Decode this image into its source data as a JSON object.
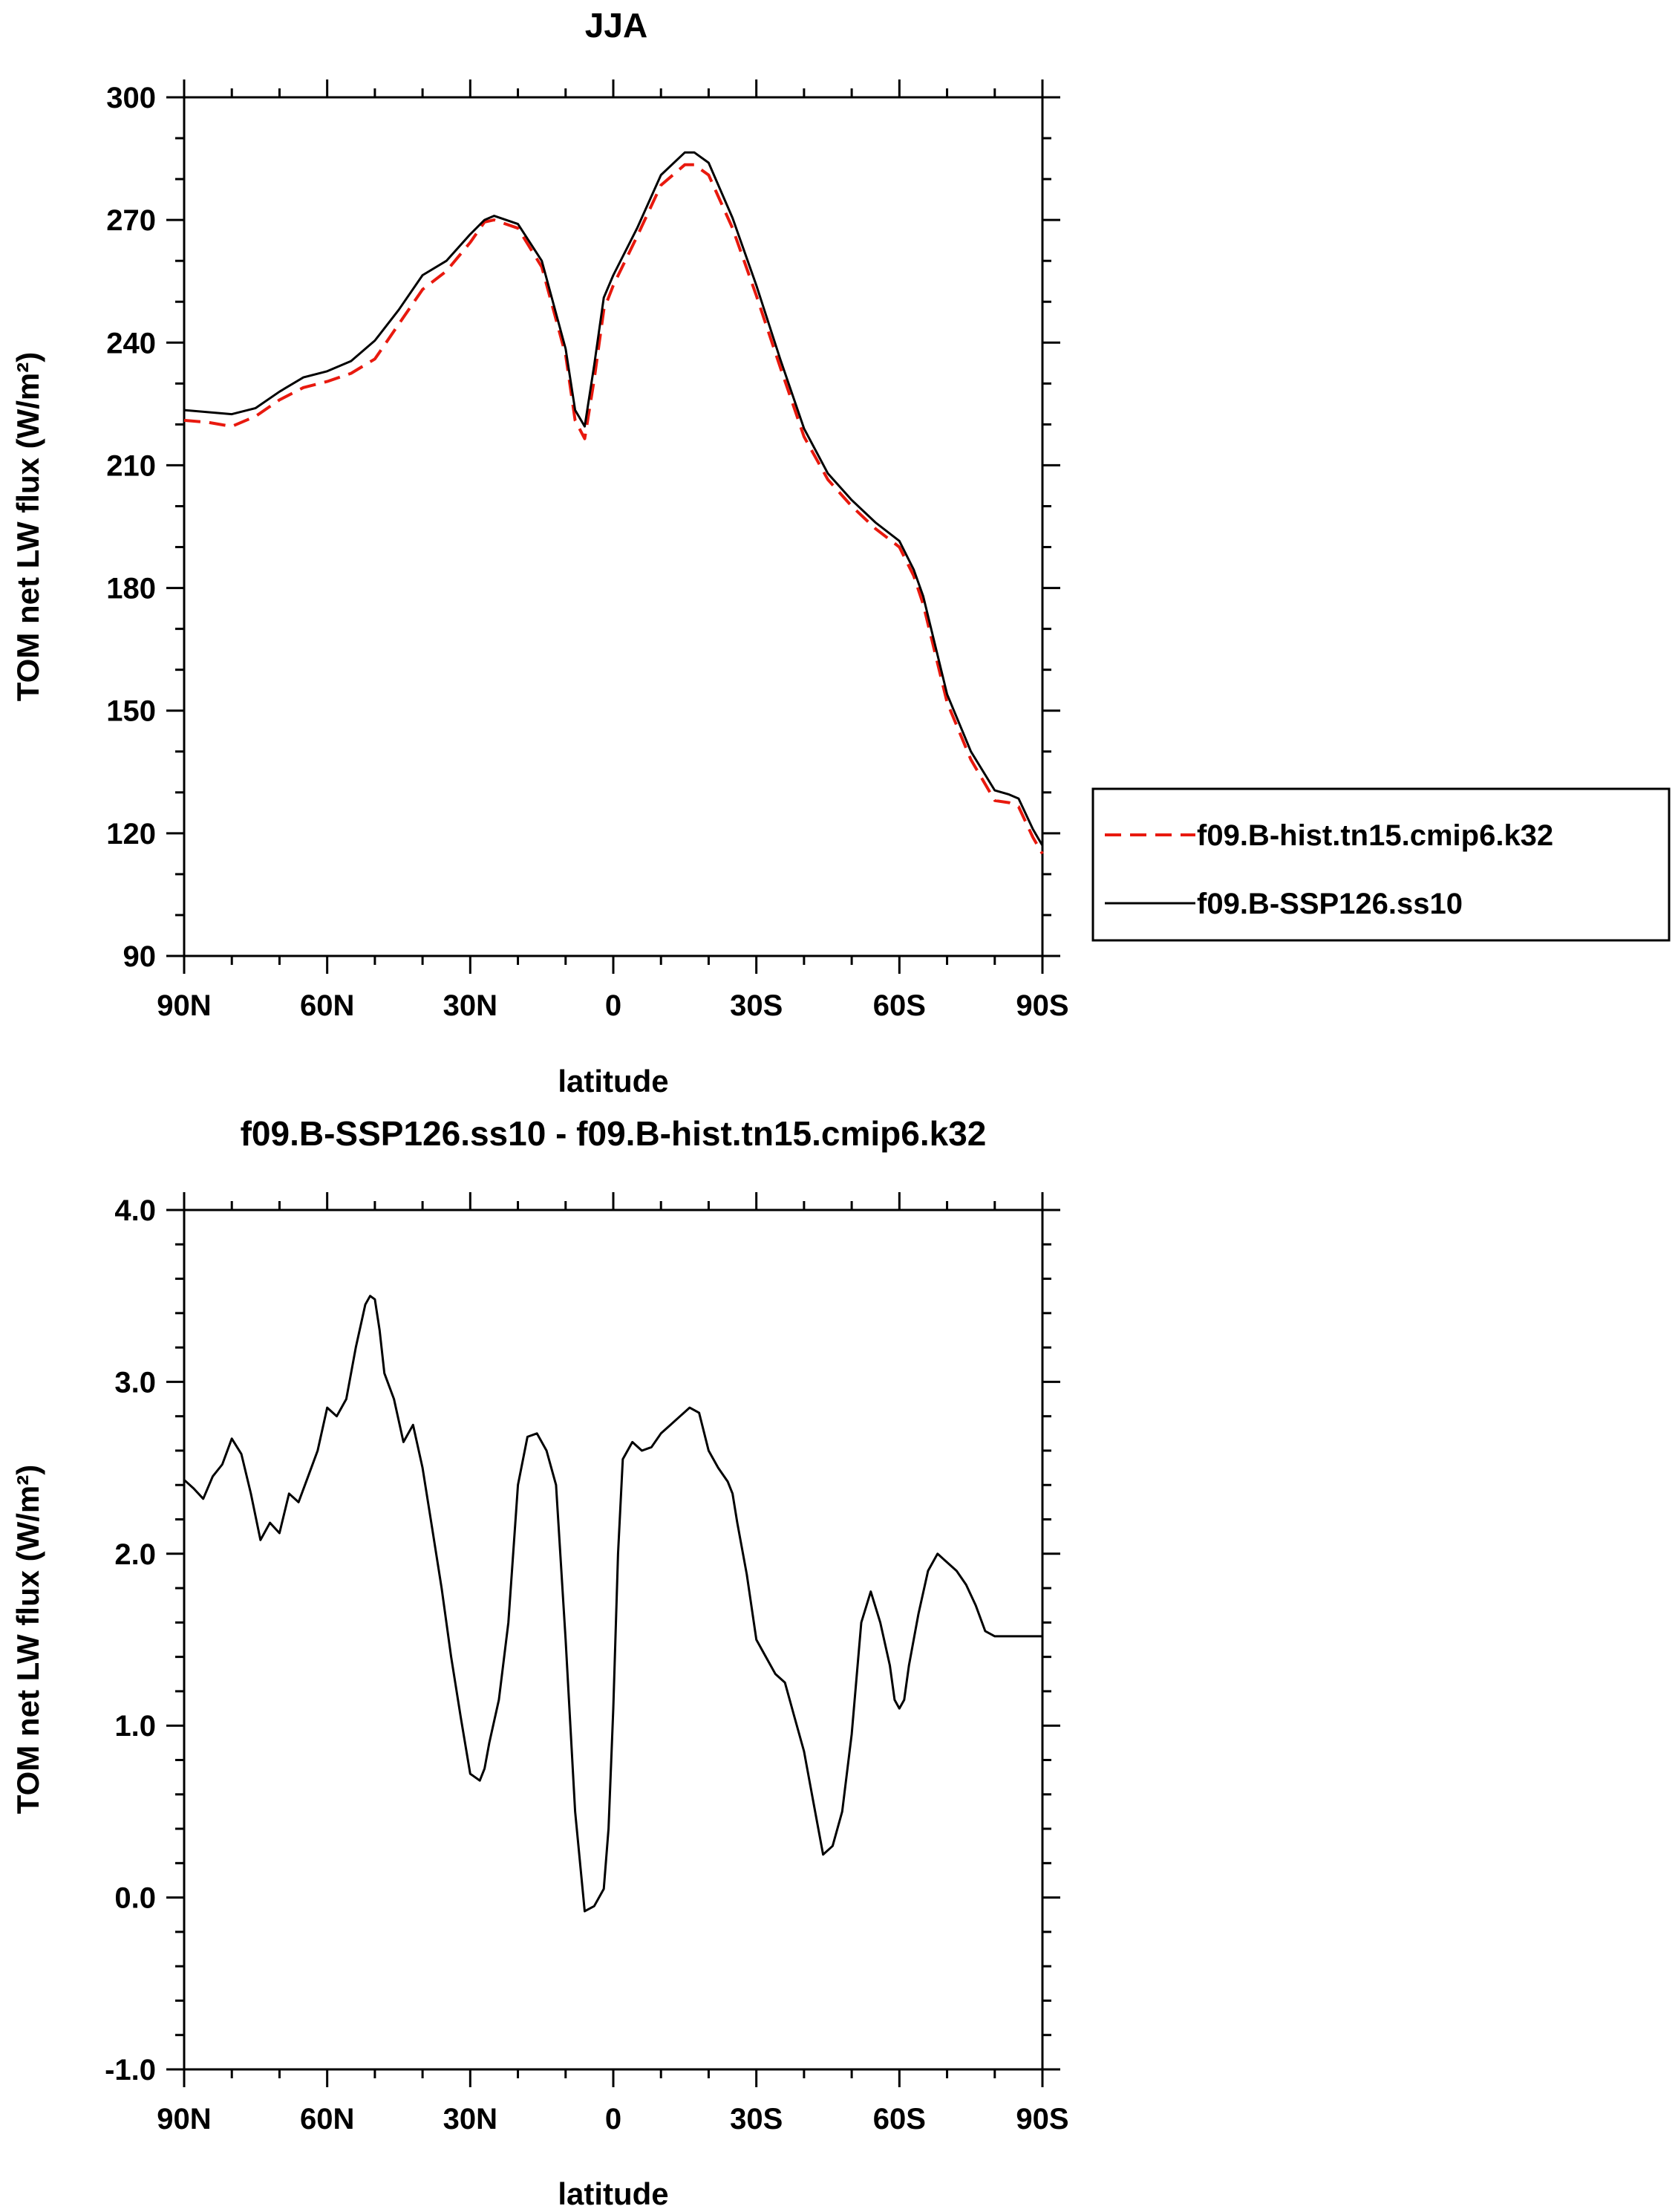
{
  "chart_data": [
    {
      "type": "line",
      "title": "JJA",
      "xlabel": "latitude",
      "ylabel": "TOM net LW flux (W/m²)",
      "ylim": [
        90,
        300
      ],
      "yticks": [
        "300",
        "270",
        "240",
        "210",
        "180",
        "150",
        "120",
        "90"
      ],
      "xticks": [
        "90N",
        "60N",
        "30N",
        "0",
        "30S",
        "60S",
        "90S"
      ],
      "x_direction": "latitude from 90N (left) to 90S (right)",
      "x": [
        90,
        85,
        80,
        75,
        70,
        65,
        60,
        55,
        50,
        45,
        40,
        35,
        30,
        27,
        25,
        20,
        15,
        10,
        8,
        6,
        4,
        2,
        0,
        -5,
        -10,
        -15,
        -17,
        -20,
        -25,
        -30,
        -35,
        -40,
        -45,
        -50,
        -55,
        -60,
        -63,
        -65,
        -70,
        -75,
        -80,
        -83,
        -85,
        -88,
        -90
      ],
      "series": [
        {
          "name": "f09.B-hist.tn15.cmip6.k32",
          "style": "dashed",
          "color": "#e8190e",
          "values": [
            221,
            220.5,
            219.5,
            222,
            226,
            229,
            230.5,
            232.5,
            236,
            244.5,
            253,
            257.5,
            264.5,
            269.5,
            270,
            268,
            258.5,
            237,
            221,
            216.5,
            231,
            248,
            254,
            266,
            278.5,
            283.5,
            283.5,
            281,
            268,
            251.5,
            234,
            217,
            206.5,
            200,
            194.5,
            190,
            183,
            176,
            152,
            138,
            128,
            127.5,
            126.5,
            119,
            115
          ]
        },
        {
          "name": "f09.B-SSP126.ss10",
          "style": "solid",
          "color": "#000000",
          "values": [
            223.5,
            223,
            222.5,
            224,
            228,
            231.5,
            233,
            235.5,
            240.5,
            248,
            256.5,
            260,
            266.5,
            270,
            271,
            269,
            260,
            238.5,
            223.5,
            219.5,
            234.5,
            251,
            256.5,
            268,
            281,
            286.5,
            286.5,
            284,
            270.5,
            254,
            236,
            219,
            208,
            201.5,
            196,
            191.5,
            184.5,
            178,
            154,
            140,
            130.5,
            129.5,
            128.5,
            121,
            117
          ]
        }
      ],
      "legend_position": "right, outside plot"
    },
    {
      "type": "line",
      "title": "f09.B-SSP126.ss10 - f09.B-hist.tn15.cmip6.k32",
      "xlabel": "latitude",
      "ylabel": "TOM net LW flux (W/m²)",
      "ylim": [
        -1.0,
        4.0
      ],
      "yticks": [
        "4.0",
        "3.0",
        "2.0",
        "1.0",
        "0.0",
        "-1.0"
      ],
      "xticks": [
        "90N",
        "60N",
        "30N",
        "0",
        "30S",
        "60S",
        "90S"
      ],
      "x": [
        90,
        88,
        86,
        84,
        82,
        80,
        78,
        76,
        74,
        72,
        70,
        68,
        66,
        64,
        62,
        60,
        58,
        56,
        54,
        52,
        51,
        50,
        49,
        48,
        46,
        44,
        42,
        40,
        38,
        36,
        34,
        32,
        30,
        28,
        27,
        26,
        24,
        22,
        20,
        18,
        16,
        14,
        12,
        10,
        8,
        6,
        4,
        2,
        1,
        0,
        -1,
        -2,
        -4,
        -6,
        -8,
        -10,
        -12,
        -14,
        -16,
        -18,
        -20,
        -22,
        -24,
        -25,
        -26,
        -28,
        -30,
        -32,
        -34,
        -36,
        -38,
        -40,
        -42,
        -44,
        -46,
        -48,
        -50,
        -52,
        -54,
        -56,
        -58,
        -59,
        -60,
        -61,
        -62,
        -63,
        -64,
        -66,
        -68,
        -70,
        -72,
        -74,
        -76,
        -78,
        -80,
        -82,
        -84,
        -86,
        -88,
        -90
      ],
      "series": [
        {
          "name": "f09.B-SSP126.ss10 - f09.B-hist.tn15.cmip6.k32",
          "style": "solid",
          "color": "#000000",
          "values": [
            2.43,
            2.38,
            2.32,
            2.45,
            2.52,
            2.67,
            2.58,
            2.35,
            2.08,
            2.18,
            2.12,
            2.35,
            2.3,
            2.45,
            2.6,
            2.85,
            2.8,
            2.9,
            3.2,
            3.45,
            3.5,
            3.48,
            3.3,
            3.05,
            2.9,
            2.65,
            2.75,
            2.5,
            2.15,
            1.8,
            1.4,
            1.05,
            0.72,
            0.68,
            0.75,
            0.9,
            1.15,
            1.6,
            2.4,
            2.68,
            2.7,
            2.6,
            2.4,
            1.5,
            0.5,
            -0.08,
            -0.05,
            0.05,
            0.4,
            1.1,
            2.0,
            2.55,
            2.65,
            2.6,
            2.62,
            2.7,
            2.75,
            2.8,
            2.85,
            2.82,
            2.6,
            2.5,
            2.42,
            2.35,
            2.18,
            1.88,
            1.5,
            1.4,
            1.3,
            1.25,
            1.05,
            0.85,
            0.55,
            0.25,
            0.3,
            0.5,
            0.95,
            1.6,
            1.78,
            1.6,
            1.35,
            1.15,
            1.1,
            1.15,
            1.35,
            1.5,
            1.65,
            1.9,
            2.0,
            1.95,
            1.9,
            1.82,
            1.7,
            1.55,
            1.52,
            1.52,
            1.52,
            1.52,
            1.52,
            1.52
          ]
        }
      ]
    }
  ]
}
